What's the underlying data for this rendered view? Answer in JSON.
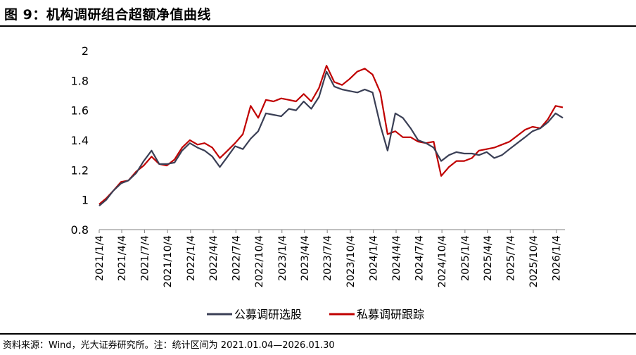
{
  "figure": {
    "title": "图 9：机构调研组合超额净值曲线",
    "source": "资料来源：Wind，光大证券研究所。注：统计区间为 2021.01.04—2026.01.30"
  },
  "colors": {
    "series1": "#3a3f55",
    "series2": "#c00000",
    "axis": "#808080"
  },
  "chart_data": {
    "type": "line",
    "title": "",
    "xlabel": "",
    "ylabel": "",
    "ylim": [
      0.8,
      2.0
    ],
    "yticks": [
      "0.8",
      "1",
      "1.2",
      "1.4",
      "1.6",
      "1.8",
      "2"
    ],
    "xticks": [
      "2021/1/4",
      "2021/4/4",
      "2021/7/4",
      "2021/10/4",
      "2022/1/4",
      "2022/4/4",
      "2022/7/4",
      "2022/10/4",
      "2023/1/4",
      "2023/4/4",
      "2023/7/4",
      "2023/10/4",
      "2024/1/4",
      "2024/4/4",
      "2024/7/4",
      "2024/10/4",
      "2025/1/4",
      "2025/4/4",
      "2025/7/4",
      "2025/10/4",
      "2026/1/4"
    ],
    "grid": false,
    "legend_position": "bottom",
    "x": [
      "2021-01-04",
      "2021-02-01",
      "2021-03-01",
      "2021-04-01",
      "2021-05-01",
      "2021-06-01",
      "2021-07-01",
      "2021-08-01",
      "2021-09-01",
      "2021-10-01",
      "2021-11-01",
      "2021-12-01",
      "2022-01-01",
      "2022-02-01",
      "2022-03-01",
      "2022-04-01",
      "2022-05-01",
      "2022-06-01",
      "2022-07-01",
      "2022-08-01",
      "2022-09-01",
      "2022-10-01",
      "2022-11-01",
      "2022-12-01",
      "2023-01-01",
      "2023-02-01",
      "2023-03-01",
      "2023-04-01",
      "2023-05-01",
      "2023-06-01",
      "2023-07-01",
      "2023-08-01",
      "2023-09-01",
      "2023-10-01",
      "2023-11-01",
      "2023-12-01",
      "2024-01-01",
      "2024-02-01",
      "2024-03-01",
      "2024-04-01",
      "2024-05-01",
      "2024-06-01",
      "2024-07-01",
      "2024-08-01",
      "2024-09-01",
      "2024-10-01",
      "2024-11-01",
      "2024-12-01",
      "2025-01-01",
      "2025-02-01",
      "2025-03-01",
      "2025-04-01",
      "2025-05-01",
      "2025-06-01",
      "2025-07-01",
      "2025-08-01",
      "2025-09-01",
      "2025-10-01",
      "2025-11-01",
      "2025-12-01",
      "2026-01-01",
      "2026-01-30"
    ],
    "series": [
      {
        "name": "公募调研选股",
        "values": [
          0.96,
          1.0,
          1.06,
          1.11,
          1.13,
          1.18,
          1.26,
          1.33,
          1.24,
          1.24,
          1.25,
          1.33,
          1.38,
          1.35,
          1.33,
          1.29,
          1.22,
          1.29,
          1.36,
          1.34,
          1.41,
          1.46,
          1.58,
          1.57,
          1.56,
          1.61,
          1.6,
          1.66,
          1.61,
          1.69,
          1.86,
          1.76,
          1.74,
          1.73,
          1.72,
          1.74,
          1.72,
          1.5,
          1.33,
          1.58,
          1.55,
          1.48,
          1.4,
          1.38,
          1.35,
          1.26,
          1.3,
          1.32,
          1.31,
          1.31,
          1.3,
          1.32,
          1.28,
          1.3,
          1.34,
          1.38,
          1.42,
          1.46,
          1.48,
          1.52,
          1.58,
          1.55
        ]
      },
      {
        "name": "私募调研跟踪",
        "values": [
          0.97,
          1.01,
          1.06,
          1.12,
          1.13,
          1.19,
          1.23,
          1.29,
          1.24,
          1.23,
          1.27,
          1.35,
          1.4,
          1.37,
          1.38,
          1.35,
          1.28,
          1.33,
          1.38,
          1.44,
          1.63,
          1.55,
          1.67,
          1.66,
          1.68,
          1.67,
          1.66,
          1.71,
          1.66,
          1.75,
          1.9,
          1.79,
          1.77,
          1.81,
          1.86,
          1.88,
          1.84,
          1.72,
          1.44,
          1.46,
          1.42,
          1.42,
          1.39,
          1.38,
          1.39,
          1.16,
          1.22,
          1.26,
          1.26,
          1.28,
          1.33,
          1.34,
          1.35,
          1.37,
          1.39,
          1.43,
          1.47,
          1.49,
          1.48,
          1.54,
          1.63,
          1.62
        ]
      }
    ]
  }
}
